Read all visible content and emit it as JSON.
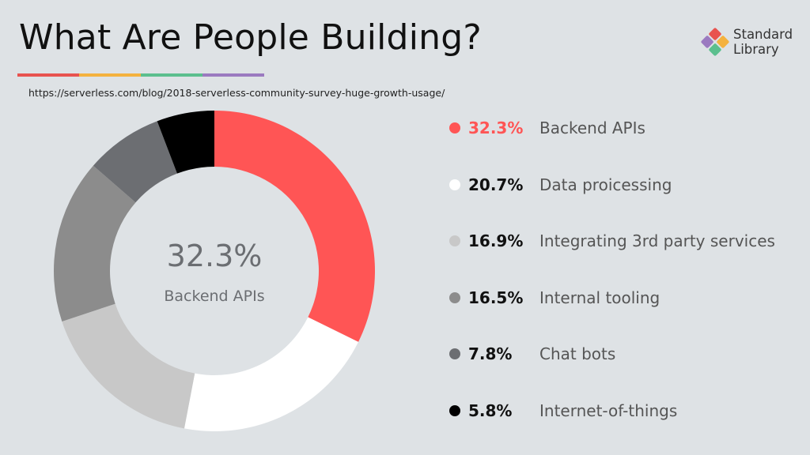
{
  "header": {
    "title": "What Are People Building?",
    "source_url": "https://serverless.com/blog/2018-serverless-community-survey-huge-growth-usage/",
    "stripe_colors": [
      "#e8534f",
      "#f4b23e",
      "#5bbf8e",
      "#9b7ac0"
    ]
  },
  "brand": {
    "icon": "standard-library-logo-icon",
    "line1": "Standard",
    "line2": "Library"
  },
  "center": {
    "value": "32.3%",
    "label": "Backend APIs"
  },
  "chart_data": {
    "type": "pie",
    "donut": true,
    "categories": [
      "Backend APIs",
      "Data proicessing",
      "Integrating 3rd party services",
      "Internal tooling",
      "Chat bots",
      "Internet-of-things"
    ],
    "values": [
      32.3,
      20.7,
      16.9,
      16.5,
      7.8,
      5.8
    ],
    "value_labels": [
      "32.3%",
      "20.7%",
      "16.9%",
      "16.5%",
      "7.8%",
      "5.8%"
    ],
    "colors": [
      "#ff5555",
      "#ffffff",
      "#c8c8c8",
      "#8c8c8c",
      "#6c6e72",
      "#000000"
    ],
    "highlight_index": 0,
    "legend_placement": "right"
  }
}
